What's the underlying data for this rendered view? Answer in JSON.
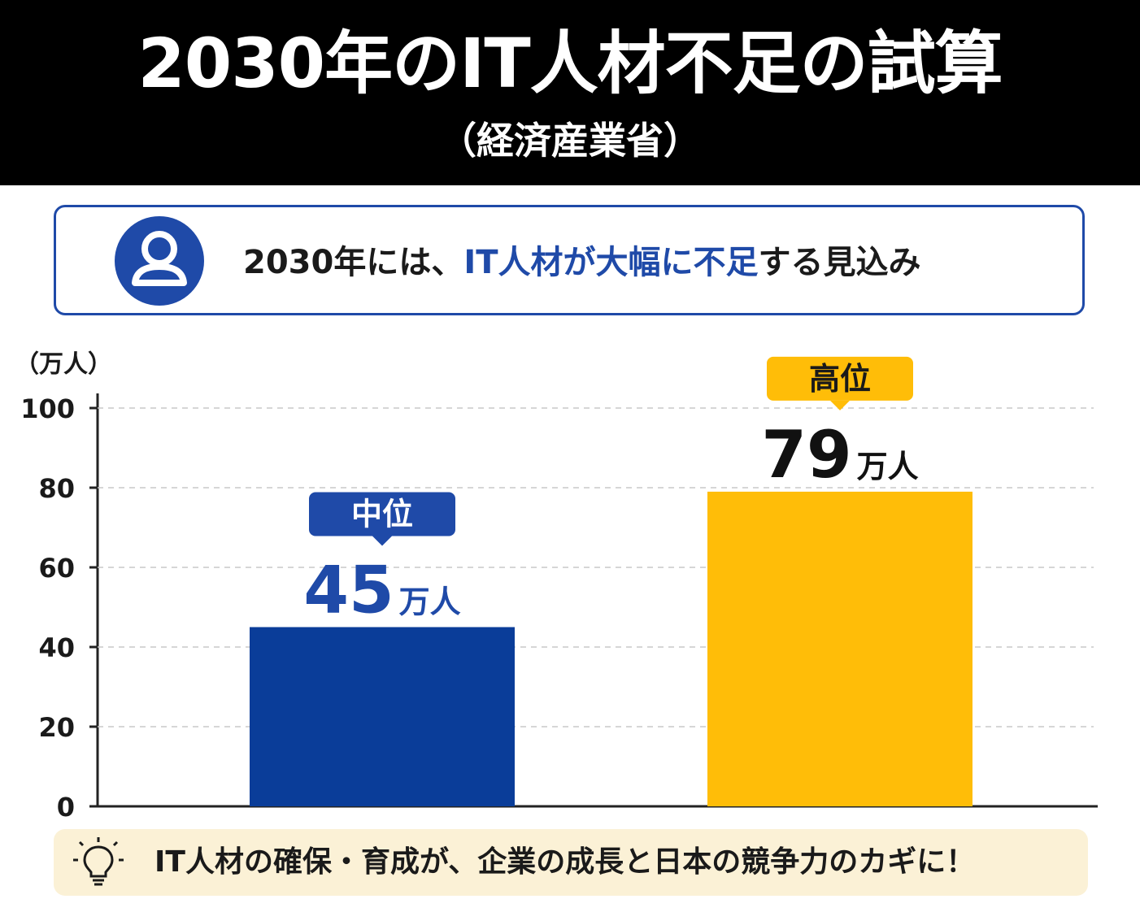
{
  "header": {
    "title": "2030年のIT人材不足の試算",
    "subtitle": "（経済産業省）"
  },
  "callout": {
    "icon": "user-icon",
    "text_before": "2030年には、",
    "text_highlight": "IT人材が大幅に不足",
    "text_after": "する見込み"
  },
  "chart_data": {
    "type": "bar",
    "unit_label": "（万人）",
    "ylim": [
      0,
      100
    ],
    "yticks": [
      "0",
      "20",
      "40",
      "60",
      "80",
      "100"
    ],
    "grid": true,
    "categories": [
      "中位",
      "高位"
    ],
    "values": [
      45,
      79
    ],
    "value_labels": [
      "45",
      "79"
    ],
    "value_unit": "万人",
    "colors": [
      "#0a3d99",
      "#ffbd08"
    ],
    "badge_colors": [
      "#1f4aa8",
      "#ffbd08"
    ],
    "badge_text_colors": [
      "#ffffff",
      "#1a1a1a"
    ],
    "value_text_colors": [
      "#1f4aa8",
      "#111111"
    ]
  },
  "footer": {
    "icon": "lightbulb-icon",
    "text": "IT人材の確保・育成が、企業の成長と日本の競争力のカギに！"
  }
}
